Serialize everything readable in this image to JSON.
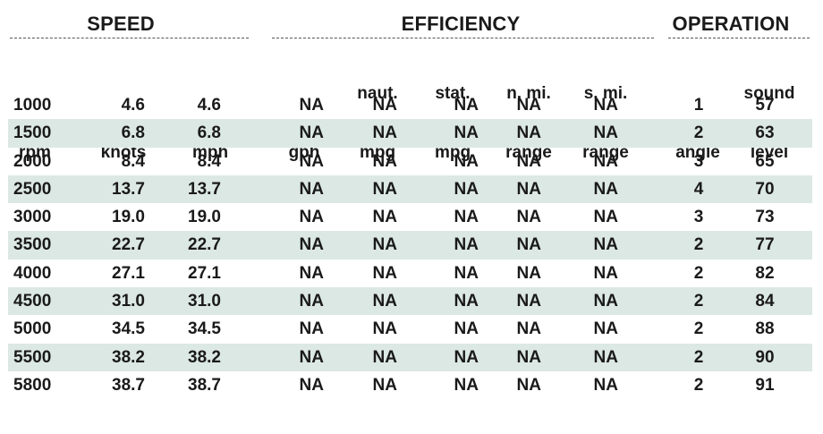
{
  "groups": {
    "speed": "SPEED",
    "efficiency": "EFFICIENCY",
    "operation": "OPERATION"
  },
  "columns": [
    {
      "line1": "",
      "line2": "rpm"
    },
    {
      "line1": "",
      "line2": "knots"
    },
    {
      "line1": "",
      "line2": "mph"
    },
    {
      "line1": "",
      "line2": "gph"
    },
    {
      "line1": "naut.",
      "line2": "mpg"
    },
    {
      "line1": "stat.",
      "line2": "mpg"
    },
    {
      "line1": "n. mi.",
      "line2": "range"
    },
    {
      "line1": "s. mi.",
      "line2": "range"
    },
    {
      "line1": "",
      "line2": "angle"
    },
    {
      "line1": "sound",
      "line2": "level"
    }
  ],
  "rows": [
    [
      "1000",
      "4.6",
      "4.6",
      "NA",
      "NA",
      "NA",
      "NA",
      "NA",
      "1",
      "57"
    ],
    [
      "1500",
      "6.8",
      "6.8",
      "NA",
      "NA",
      "NA",
      "NA",
      "NA",
      "2",
      "63"
    ],
    [
      "2000",
      "8.4",
      "8.4",
      "NA",
      "NA",
      "NA",
      "NA",
      "NA",
      "3",
      "65"
    ],
    [
      "2500",
      "13.7",
      "13.7",
      "NA",
      "NA",
      "NA",
      "NA",
      "NA",
      "4",
      "70"
    ],
    [
      "3000",
      "19.0",
      "19.0",
      "NA",
      "NA",
      "NA",
      "NA",
      "NA",
      "3",
      "73"
    ],
    [
      "3500",
      "22.7",
      "22.7",
      "NA",
      "NA",
      "NA",
      "NA",
      "NA",
      "2",
      "77"
    ],
    [
      "4000",
      "27.1",
      "27.1",
      "NA",
      "NA",
      "NA",
      "NA",
      "NA",
      "2",
      "82"
    ],
    [
      "4500",
      "31.0",
      "31.0",
      "NA",
      "NA",
      "NA",
      "NA",
      "NA",
      "2",
      "84"
    ],
    [
      "5000",
      "34.5",
      "34.5",
      "NA",
      "NA",
      "NA",
      "NA",
      "NA",
      "2",
      "88"
    ],
    [
      "5500",
      "38.2",
      "38.2",
      "NA",
      "NA",
      "NA",
      "NA",
      "NA",
      "2",
      "90"
    ],
    [
      "5800",
      "38.7",
      "38.7",
      "NA",
      "NA",
      "NA",
      "NA",
      "NA",
      "2",
      "91"
    ]
  ],
  "colors": {
    "stripe": "#dce8e3",
    "text": "#1a1a1a"
  }
}
